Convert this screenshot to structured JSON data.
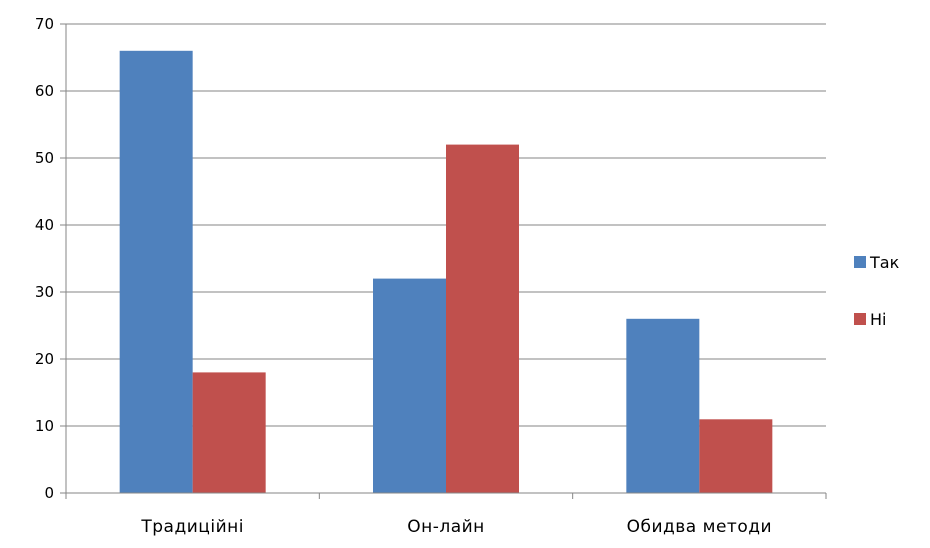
{
  "chart_data": {
    "type": "bar",
    "categories": [
      "Традиційні",
      "Он-лайн",
      "Обидва методи"
    ],
    "series": [
      {
        "name": "Так",
        "values": [
          66,
          32,
          26
        ],
        "color": "#4F81BD"
      },
      {
        "name": "Ні",
        "values": [
          18,
          52,
          11
        ],
        "color": "#C0504D"
      }
    ],
    "ylim": [
      0,
      70
    ],
    "yticks": [
      0,
      10,
      20,
      30,
      40,
      50,
      60,
      70
    ],
    "grid": true,
    "legend": "right"
  }
}
